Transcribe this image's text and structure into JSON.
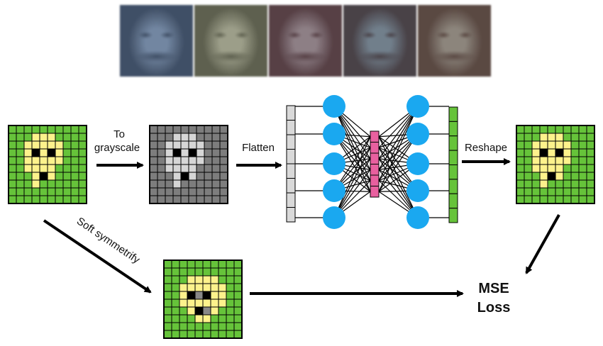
{
  "faces": [
    {
      "name": "face-thumbnail-1",
      "tint": "#6f86a6",
      "dark": "#3d4f6a"
    },
    {
      "name": "face-thumbnail-2",
      "tint": "#9c9e86",
      "dark": "#5e604c"
    },
    {
      "name": "face-thumbnail-3",
      "tint": "#8f7e86",
      "dark": "#5a3f45"
    },
    {
      "name": "face-thumbnail-4",
      "tint": "#6f7f8e",
      "dark": "#4a4248"
    },
    {
      "name": "face-thumbnail-5",
      "tint": "#8d857a",
      "dark": "#5c4840"
    }
  ],
  "labels": {
    "to_grayscale_1": "To",
    "to_grayscale_2": "grayscale",
    "flatten": "Flatten",
    "reshape": "Reshape",
    "soft_symmetrify": "Soft symmetrify",
    "mse_1": "MSE",
    "mse_2": "Loss"
  },
  "colors": {
    "green": "#66c33a",
    "yellow": "#fdf28c",
    "black": "#000000",
    "gray_dark": "#7d7d7d",
    "gray_light": "#d6d6d6",
    "gray_mid": "#888888",
    "node_blue": "#1aa8f0",
    "latent_pink": "#e8609f",
    "input_gray": "#d9d9d9",
    "output_green": "#66c33a"
  },
  "pixel_grid": {
    "size": 10,
    "original": [
      "GGGGGGGGGG",
      "GGGYYYGGGG",
      "GGYYYYYGGG",
      "GGYKYKYGGG",
      "GGYYYYYGGG",
      "GGYYYYGGGG",
      "GGGYKYGGGG",
      "GGGYGGGGGG",
      "GGGGGGGGGG",
      "GGGGGGGGGG"
    ],
    "symmetrified": [
      "GGGGGGGGGG",
      "GGGGGGGGGG",
      "GGGYYYYGGG",
      "GGYYYYYYGG",
      "GGYKDKYYGG",
      "GGYYYYYYGG",
      "GGGYKDYGGG",
      "GGGGYYGGGG",
      "GGGGGGGGGG",
      "GGGGGGGGGG"
    ]
  },
  "network": {
    "input_units": 8,
    "hidden_units": 5,
    "latent_units": 6,
    "output_units": 8
  }
}
